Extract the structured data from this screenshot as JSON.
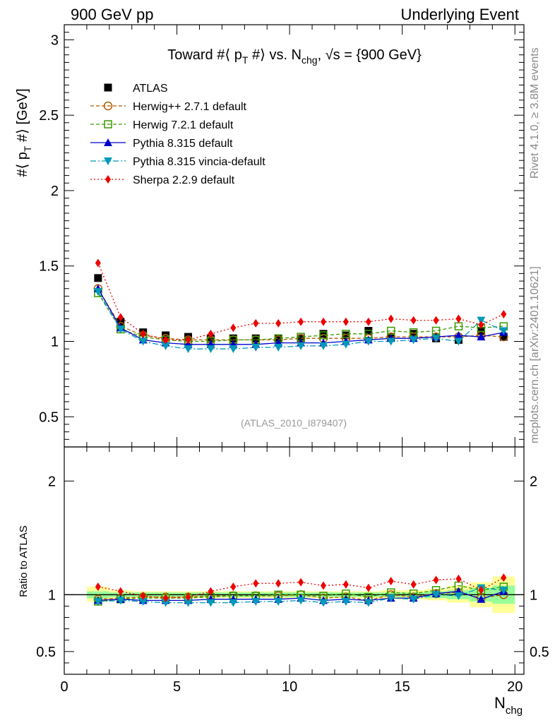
{
  "header": {
    "left": "900 GeV pp",
    "right": "Underlying Event"
  },
  "side_labels": {
    "rivet": "Rivet 4.1.0, ≥ 3.8M events",
    "mcplots": "mcplots.cern.ch [arXiv:2401.10621]"
  },
  "colors": {
    "ATLAS": "#000000",
    "herwigpp": "#b35900",
    "herwig7": "#3a9a00",
    "pythia": "#0000cc",
    "vincia": "#0099bb",
    "sherpa": "#ee0000",
    "band_yellow": "#ffff99",
    "band_green": "#99ff99"
  },
  "chart_data": [
    {
      "type": "line",
      "panel": "main",
      "title": "Toward #⟨ p_T #⟩ vs. N_chg, √s = {900 GeV}",
      "title_parts": {
        "pre": "Toward #⟨ p",
        "sub1": "T",
        "mid": " #⟩ vs. N",
        "sub2": "chg",
        "post": ", √s = {900 GeV}"
      },
      "ylabel": "#⟨ p_T #⟩ [GeV]",
      "ylabel_parts": {
        "pre": "#⟨ p",
        "sub": "T",
        "post": " #⟩ [GeV]"
      },
      "xlabel": "N_chg",
      "xlabel_parts": {
        "main": "N",
        "sub": "chg"
      },
      "analysis_label": "(ATLAS_2010_I879407)",
      "xlim": [
        0,
        20.4
      ],
      "ylim": [
        0.3,
        3.1
      ],
      "xticks": [
        0,
        5,
        10,
        15,
        20
      ],
      "xtick_labels": [
        "0",
        "5",
        "10",
        "15",
        "20"
      ],
      "yticks": [
        0.5,
        1,
        1.5,
        2,
        2.5,
        3
      ],
      "ytick_labels": [
        "0.5",
        "1",
        "1.5",
        "2",
        "2.5",
        "3"
      ],
      "legend_position": "top-left",
      "x": [
        1.5,
        2.5,
        3.5,
        4.5,
        5.5,
        6.5,
        7.5,
        8.5,
        9.5,
        10.5,
        11.5,
        12.5,
        13.5,
        14.5,
        15.5,
        16.5,
        17.5,
        18.5,
        19.5
      ],
      "series": [
        {
          "name": "ATLAS",
          "key": "ATLAS",
          "marker": "square-filled",
          "line": "none",
          "values": [
            1.42,
            1.13,
            1.06,
            1.04,
            1.03,
            1.02,
            1.02,
            1.02,
            1.02,
            1.02,
            1.05,
            1.04,
            1.07,
            1.03,
            1.05,
            1.02,
            1.01,
            1.07,
            1.03
          ]
        },
        {
          "name": "Herwig++ 2.7.1 default",
          "key": "herwigpp",
          "marker": "circle-open",
          "line": "dashed",
          "values": [
            1.35,
            1.1,
            1.04,
            1.02,
            1.01,
            1.01,
            1.01,
            1.01,
            1.01,
            1.02,
            1.02,
            1.02,
            1.02,
            1.03,
            1.03,
            1.03,
            1.03,
            1.04,
            1.03
          ]
        },
        {
          "name": "Herwig 7.2.1 default",
          "key": "herwig7",
          "marker": "square-open",
          "line": "dashed",
          "values": [
            1.32,
            1.08,
            1.03,
            1.01,
            1.0,
            1.0,
            1.01,
            1.01,
            1.02,
            1.03,
            1.04,
            1.05,
            1.05,
            1.07,
            1.06,
            1.07,
            1.1,
            1.09,
            1.1
          ]
        },
        {
          "name": "Pythia 8.315 default",
          "key": "pythia",
          "marker": "triangle-up",
          "line": "solid",
          "values": [
            1.35,
            1.09,
            1.01,
            0.99,
            0.98,
            0.98,
            0.98,
            0.98,
            0.99,
            0.99,
            0.99,
            1.0,
            1.01,
            1.02,
            1.02,
            1.03,
            1.04,
            1.03,
            1.06
          ]
        },
        {
          "name": "Pythia 8.315 vincia-default",
          "key": "vincia",
          "marker": "triangle-down",
          "line": "dashdot",
          "values": [
            1.33,
            1.08,
            1.0,
            0.97,
            0.95,
            0.95,
            0.95,
            0.96,
            0.96,
            0.97,
            0.97,
            0.98,
            1.0,
            1.0,
            1.01,
            1.02,
            1.0,
            1.14,
            1.07
          ]
        },
        {
          "name": "Sherpa 2.2.9 default",
          "key": "sherpa",
          "marker": "diamond",
          "line": "dotted",
          "values": [
            1.52,
            1.16,
            1.05,
            1.01,
            1.01,
            1.05,
            1.09,
            1.12,
            1.12,
            1.13,
            1.13,
            1.13,
            1.13,
            1.15,
            1.14,
            1.14,
            1.15,
            1.11,
            1.18
          ]
        }
      ]
    },
    {
      "type": "line",
      "panel": "ratio",
      "ylabel": "Ratio to ATLAS",
      "xlim": [
        0,
        20.4
      ],
      "ylim": [
        0.3,
        2.3
      ],
      "yticks": [
        0.5,
        1,
        2
      ],
      "ytick_labels": [
        "0.5",
        "1",
        "2"
      ],
      "reference_line": 1.0,
      "x": [
        1.5,
        2.5,
        3.5,
        4.5,
        5.5,
        6.5,
        7.5,
        8.5,
        9.5,
        10.5,
        11.5,
        12.5,
        13.5,
        14.5,
        15.5,
        16.5,
        17.5,
        18.5,
        19.5
      ],
      "band_yellow": {
        "low": [
          0.94,
          0.96,
          0.97,
          0.97,
          0.97,
          0.97,
          0.97,
          0.97,
          0.97,
          0.97,
          0.97,
          0.97,
          0.97,
          0.96,
          0.96,
          0.95,
          0.93,
          0.89,
          0.84
        ],
        "high": [
          1.07,
          1.04,
          1.03,
          1.03,
          1.03,
          1.03,
          1.03,
          1.03,
          1.03,
          1.03,
          1.03,
          1.03,
          1.03,
          1.04,
          1.04,
          1.05,
          1.08,
          1.11,
          1.16
        ]
      },
      "band_green": {
        "low": [
          0.97,
          0.98,
          0.98,
          0.98,
          0.98,
          0.98,
          0.98,
          0.98,
          0.98,
          0.98,
          0.98,
          0.98,
          0.98,
          0.98,
          0.98,
          0.97,
          0.96,
          0.94,
          0.92
        ],
        "high": [
          1.03,
          1.02,
          1.02,
          1.02,
          1.02,
          1.02,
          1.02,
          1.02,
          1.02,
          1.02,
          1.02,
          1.02,
          1.02,
          1.02,
          1.02,
          1.03,
          1.04,
          1.06,
          1.08
        ]
      },
      "series": [
        {
          "name": "Herwig++ 2.7.1 default",
          "key": "herwigpp",
          "marker": "circle-open",
          "line": "dashed",
          "values": [
            0.96,
            0.97,
            0.98,
            0.98,
            0.98,
            0.99,
            0.99,
            0.99,
            0.99,
            1.0,
            0.97,
            0.98,
            0.95,
            1.0,
            0.98,
            1.01,
            1.02,
            0.97,
            1.0
          ]
        },
        {
          "name": "Herwig 7.2.1 default",
          "key": "herwig7",
          "marker": "square-open",
          "line": "dashed",
          "values": [
            0.94,
            0.96,
            0.97,
            0.97,
            0.97,
            0.98,
            0.99,
            0.99,
            1.0,
            1.0,
            0.99,
            1.01,
            0.98,
            1.02,
            1.01,
            1.04,
            1.08,
            1.04,
            1.07
          ]
        },
        {
          "name": "Pythia 8.315 default",
          "key": "pythia",
          "marker": "triangle-up",
          "line": "solid",
          "values": [
            0.95,
            0.96,
            0.95,
            0.95,
            0.95,
            0.96,
            0.96,
            0.96,
            0.96,
            0.97,
            0.95,
            0.96,
            0.95,
            0.97,
            0.97,
            1.01,
            1.03,
            0.96,
            1.03
          ]
        },
        {
          "name": "Pythia 8.315 vincia-default",
          "key": "vincia",
          "marker": "triangle-down",
          "line": "dashdot",
          "values": [
            0.94,
            0.95,
            0.94,
            0.93,
            0.93,
            0.93,
            0.93,
            0.94,
            0.94,
            0.95,
            0.93,
            0.94,
            0.93,
            0.97,
            0.96,
            1.0,
            0.99,
            1.06,
            1.04
          ]
        },
        {
          "name": "Sherpa 2.2.9 default",
          "key": "sherpa",
          "marker": "diamond",
          "line": "dotted",
          "values": [
            1.07,
            1.03,
            0.99,
            0.97,
            0.98,
            1.03,
            1.07,
            1.1,
            1.1,
            1.11,
            1.08,
            1.09,
            1.06,
            1.12,
            1.09,
            1.13,
            1.14,
            1.04,
            1.15
          ]
        }
      ]
    }
  ]
}
